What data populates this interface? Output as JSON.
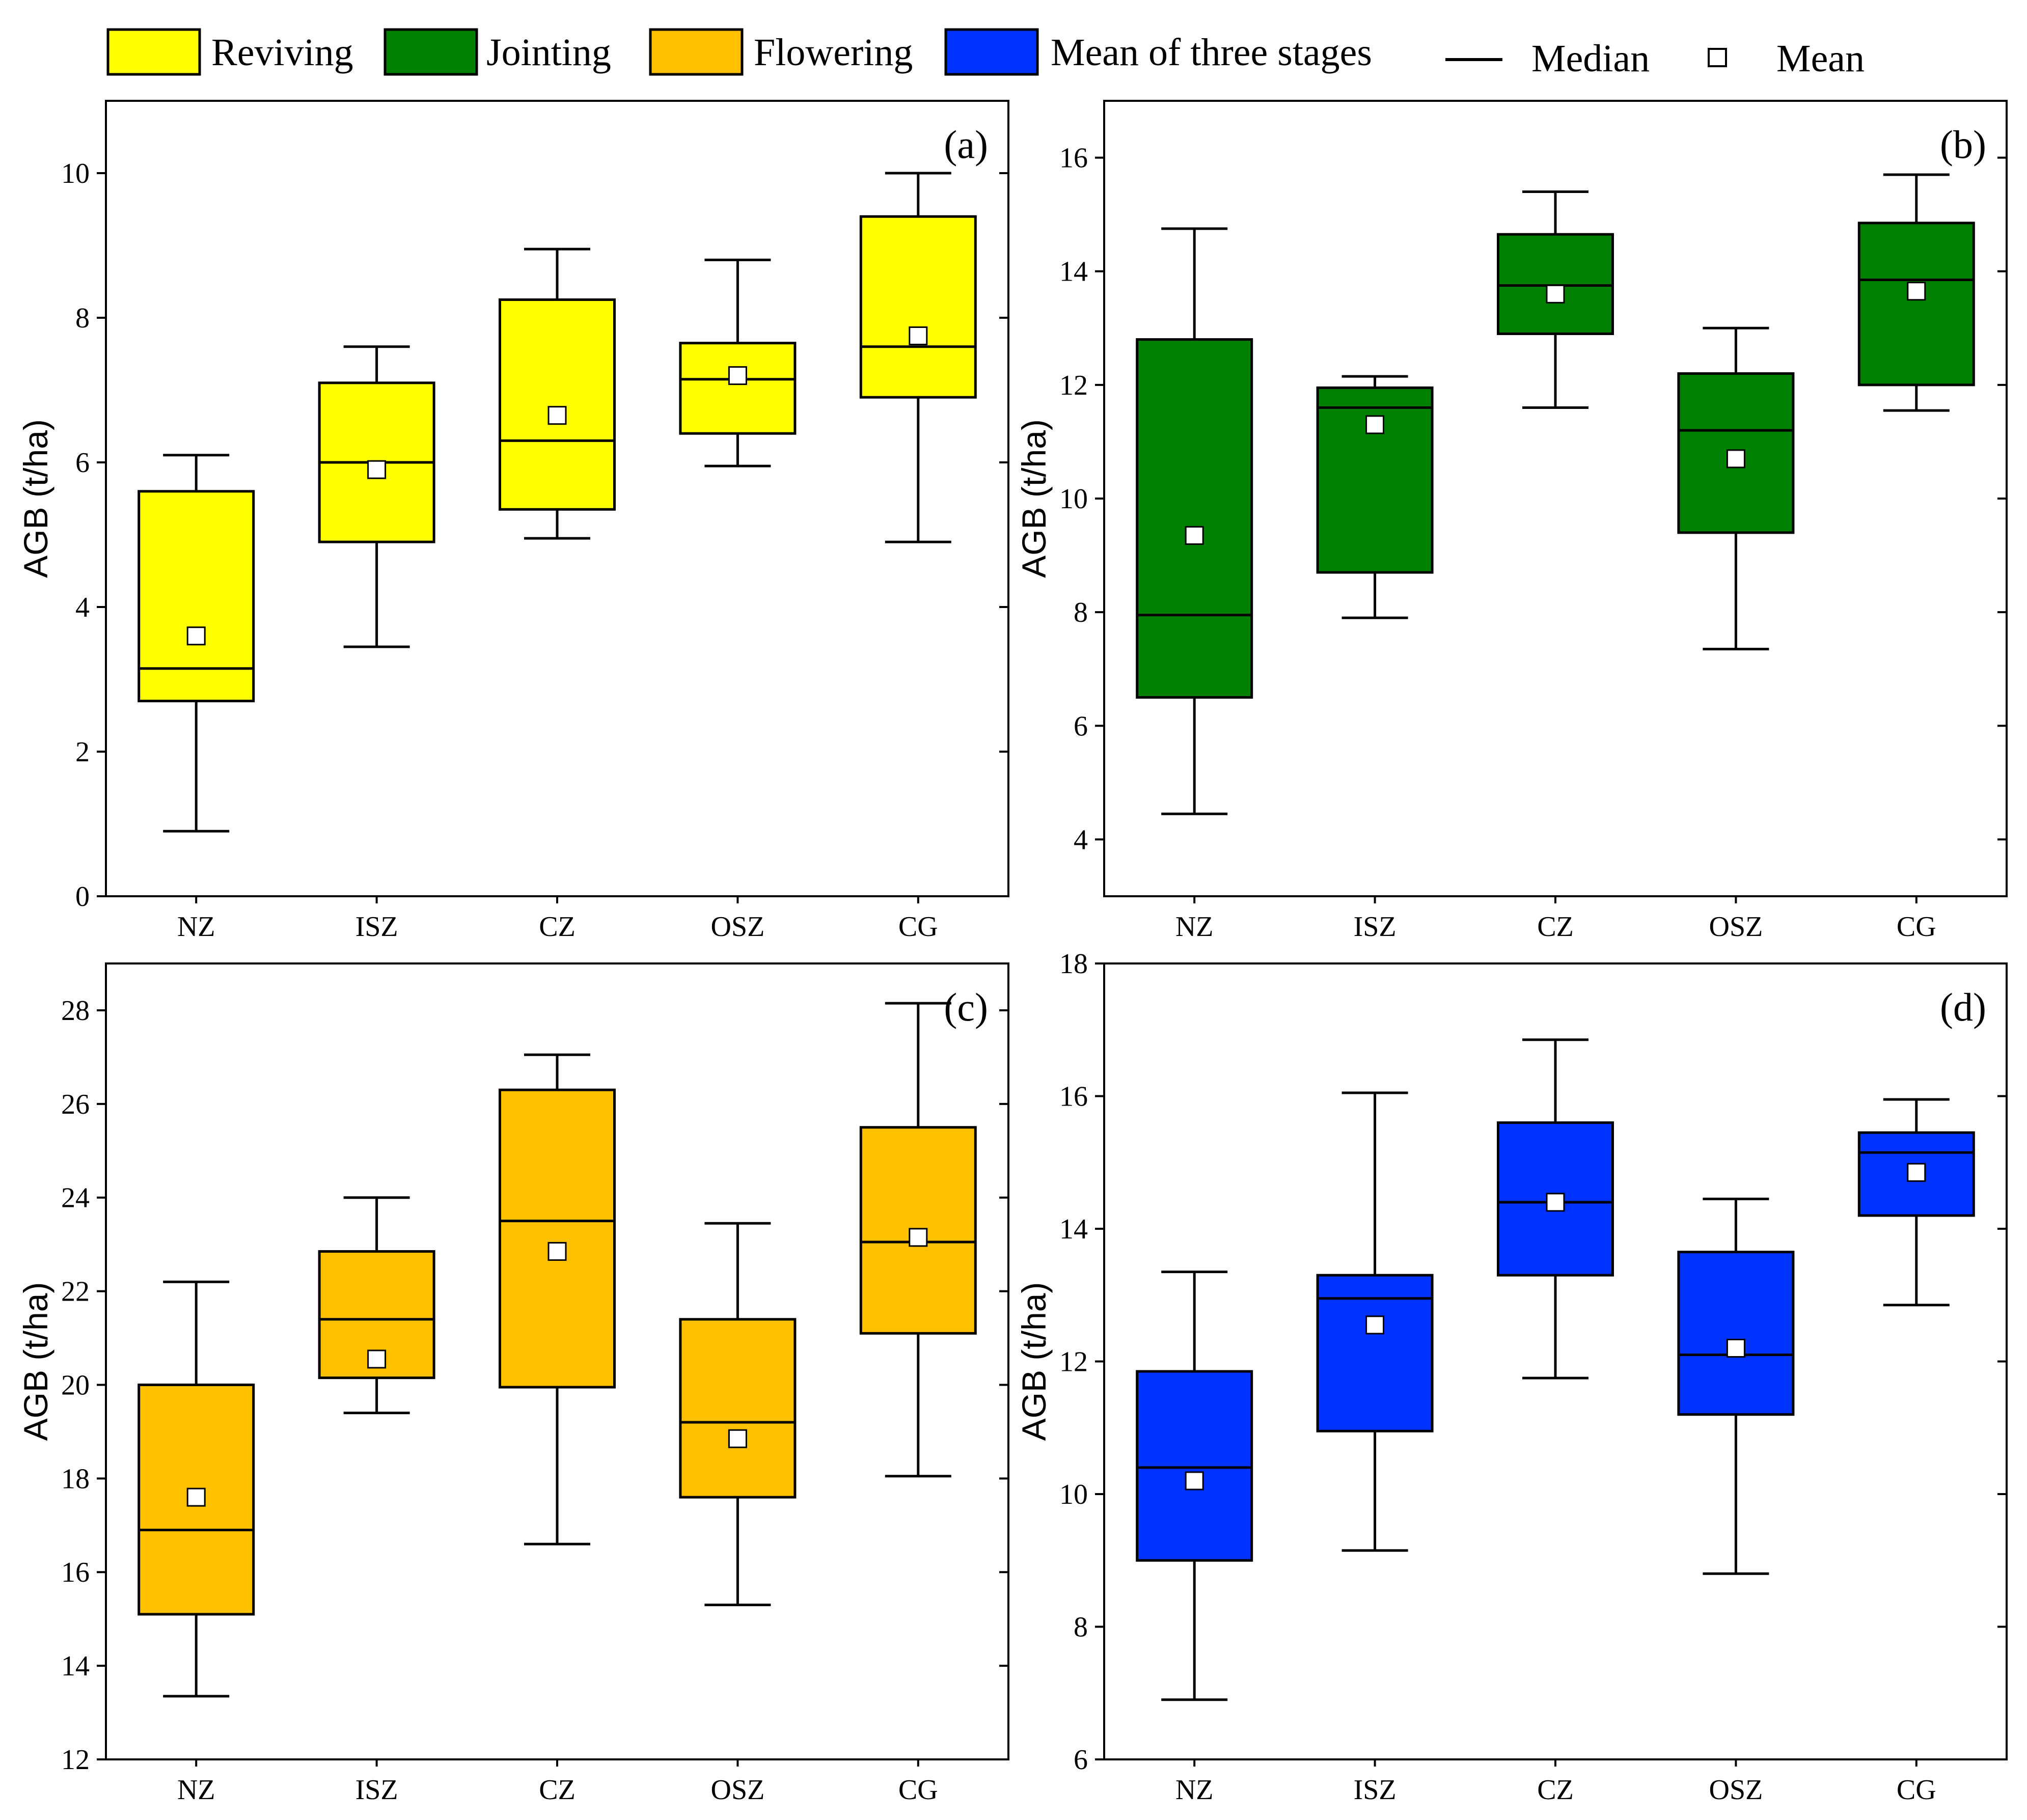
{
  "legend": {
    "items": [
      {
        "label": "Reviving",
        "color": "#ffff00"
      },
      {
        "label": "Jointing",
        "color": "#008000"
      },
      {
        "label": "Flowering",
        "color": "#ffc000"
      },
      {
        "label": "Mean of three stages",
        "color": "#0033ff"
      }
    ],
    "median_label": "Median",
    "mean_label": "Mean"
  },
  "chart_data": [
    {
      "type": "box",
      "panel": "(a)",
      "stage": "Reviving",
      "color": "#ffff00",
      "ylabel": "AGB (t/ha)",
      "ylim": [
        0,
        11
      ],
      "yticks": [
        0,
        2,
        4,
        6,
        8,
        10
      ],
      "categories": [
        "NZ",
        "ISZ",
        "CZ",
        "OSZ",
        "CG"
      ],
      "boxes": [
        {
          "min": 0.9,
          "q1": 2.7,
          "median": 3.15,
          "q3": 5.6,
          "max": 6.1,
          "mean": 3.6
        },
        {
          "min": 3.45,
          "q1": 4.9,
          "median": 6.0,
          "q3": 7.1,
          "max": 7.6,
          "mean": 5.9
        },
        {
          "min": 4.95,
          "q1": 5.35,
          "median": 6.3,
          "q3": 8.25,
          "max": 8.95,
          "mean": 6.65
        },
        {
          "min": 5.95,
          "q1": 6.4,
          "median": 7.15,
          "q3": 7.65,
          "max": 8.8,
          "mean": 7.2
        },
        {
          "min": 4.9,
          "q1": 6.9,
          "median": 7.6,
          "q3": 9.4,
          "max": 10.0,
          "mean": 7.75
        }
      ]
    },
    {
      "type": "box",
      "panel": "(b)",
      "stage": "Jointing",
      "color": "#008000",
      "ylabel": "AGB (t/ha)",
      "ylim": [
        3,
        17
      ],
      "yticks": [
        4,
        6,
        8,
        10,
        12,
        14,
        16
      ],
      "categories": [
        "NZ",
        "ISZ",
        "CZ",
        "OSZ",
        "CG"
      ],
      "boxes": [
        {
          "min": 4.45,
          "q1": 6.5,
          "median": 7.95,
          "q3": 12.8,
          "max": 14.75,
          "mean": 9.35
        },
        {
          "min": 7.9,
          "q1": 8.7,
          "median": 11.6,
          "q3": 11.95,
          "max": 12.15,
          "mean": 11.3
        },
        {
          "min": 11.6,
          "q1": 12.9,
          "median": 13.75,
          "q3": 14.65,
          "max": 15.4,
          "mean": 13.6
        },
        {
          "min": 7.35,
          "q1": 9.4,
          "median": 11.2,
          "q3": 12.2,
          "max": 13.0,
          "mean": 10.7
        },
        {
          "min": 11.55,
          "q1": 12.0,
          "median": 13.85,
          "q3": 14.85,
          "max": 15.7,
          "mean": 13.65
        }
      ]
    },
    {
      "type": "box",
      "panel": "(c)",
      "stage": "Flowering",
      "color": "#ffc000",
      "ylabel": "AGB (t/ha)",
      "ylim": [
        12,
        29
      ],
      "yticks": [
        12,
        14,
        16,
        18,
        20,
        22,
        24,
        26,
        28
      ],
      "categories": [
        "NZ",
        "ISZ",
        "CZ",
        "OSZ",
        "CG"
      ],
      "boxes": [
        {
          "min": 13.35,
          "q1": 15.1,
          "median": 16.9,
          "q3": 20.0,
          "max": 22.2,
          "mean": 17.6
        },
        {
          "min": 19.4,
          "q1": 20.15,
          "median": 21.4,
          "q3": 22.85,
          "max": 24.0,
          "mean": 20.55
        },
        {
          "min": 16.6,
          "q1": 19.95,
          "median": 23.5,
          "q3": 26.3,
          "max": 27.05,
          "mean": 22.85
        },
        {
          "min": 15.3,
          "q1": 17.6,
          "median": 19.2,
          "q3": 21.4,
          "max": 23.45,
          "mean": 18.85
        },
        {
          "min": 18.05,
          "q1": 21.1,
          "median": 23.05,
          "q3": 25.5,
          "max": 28.15,
          "mean": 23.15
        }
      ]
    },
    {
      "type": "box",
      "panel": "(d)",
      "stage": "Mean of three stages",
      "color": "#0033ff",
      "ylabel": "AGB (t/ha)",
      "ylim": [
        6,
        18
      ],
      "yticks": [
        6,
        8,
        10,
        12,
        14,
        16,
        18
      ],
      "categories": [
        "NZ",
        "ISZ",
        "CZ",
        "OSZ",
        "CG"
      ],
      "boxes": [
        {
          "min": 6.9,
          "q1": 9.0,
          "median": 10.4,
          "q3": 11.85,
          "max": 13.35,
          "mean": 10.2
        },
        {
          "min": 9.15,
          "q1": 10.95,
          "median": 12.95,
          "q3": 13.3,
          "max": 16.05,
          "mean": 12.55
        },
        {
          "min": 11.75,
          "q1": 13.3,
          "median": 14.4,
          "q3": 15.6,
          "max": 16.85,
          "mean": 14.4
        },
        {
          "min": 8.8,
          "q1": 11.2,
          "median": 12.1,
          "q3": 13.65,
          "max": 14.45,
          "mean": 12.2
        },
        {
          "min": 12.85,
          "q1": 14.2,
          "median": 15.15,
          "q3": 15.45,
          "max": 15.95,
          "mean": 14.85
        }
      ]
    }
  ]
}
